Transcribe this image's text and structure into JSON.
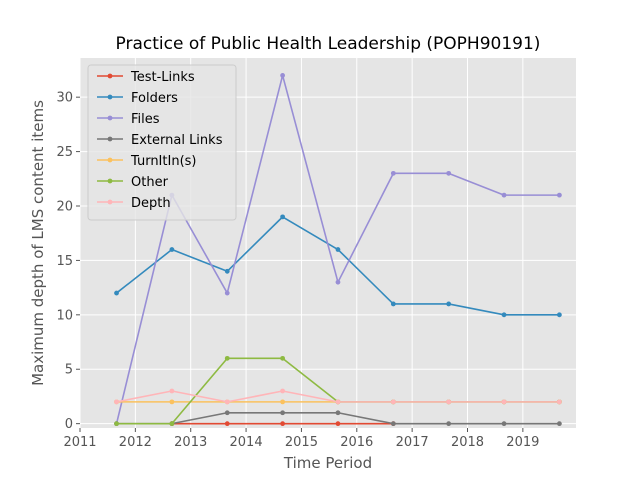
{
  "chart_data": {
    "type": "line",
    "title": "Practice of Public Health Leadership (POPH90191)",
    "xlabel": "Time Period",
    "ylabel": "Maximum depth of LMS content items",
    "xlim": [
      2011.0,
      2019.96
    ],
    "ylim": [
      -0.4,
      33.6
    ],
    "xticks": [
      2011,
      2012,
      2013,
      2014,
      2015,
      2016,
      2017,
      2018,
      2019
    ],
    "yticks": [
      0,
      5,
      10,
      15,
      20,
      25,
      30
    ],
    "grid": true,
    "legend_position": "upper left",
    "x": [
      2011.66,
      2012.66,
      2013.66,
      2014.66,
      2015.66,
      2016.66,
      2017.66,
      2018.66,
      2019.66
    ],
    "series": [
      {
        "name": "Test-Links",
        "color": "#E24A33",
        "values": [
          null,
          0,
          0,
          0,
          0,
          0,
          null,
          null,
          null
        ]
      },
      {
        "name": "Folders",
        "color": "#348ABD",
        "values": [
          12,
          16,
          14,
          19,
          16,
          11,
          11,
          10,
          10
        ]
      },
      {
        "name": "Files",
        "color": "#988ED5",
        "values": [
          0,
          21,
          12,
          32,
          13,
          23,
          23,
          21,
          21
        ]
      },
      {
        "name": "External Links",
        "color": "#777777",
        "values": [
          0,
          0,
          1,
          1,
          1,
          0,
          0,
          0,
          0
        ]
      },
      {
        "name": "TurnItIn(s)",
        "color": "#FBC15E",
        "values": [
          2,
          2,
          2,
          2,
          2,
          2,
          2,
          2,
          2
        ]
      },
      {
        "name": "Other",
        "color": "#8EBA42",
        "values": [
          0,
          0,
          6,
          6,
          2,
          2,
          2,
          2,
          2
        ]
      },
      {
        "name": "Depth",
        "color": "#FFB5B8",
        "values": [
          2,
          3,
          2,
          3,
          2,
          2,
          2,
          2,
          2
        ]
      }
    ]
  }
}
